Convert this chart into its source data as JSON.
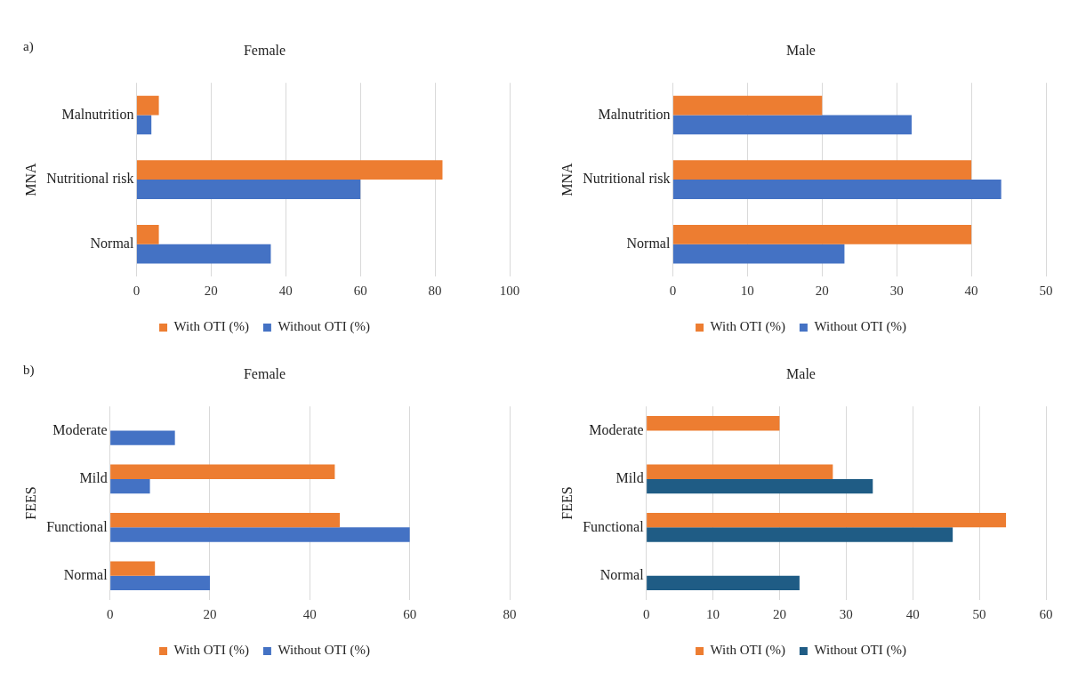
{
  "chart_data": [
    {
      "type": "bar",
      "orientation": "horizontal",
      "title": "Female",
      "ylabel": "MNA",
      "annotations": [
        "a)"
      ],
      "categories": [
        "Malnutrition",
        "Nutritional risk",
        "Normal"
      ],
      "series": [
        {
          "name": "With OTI (%)",
          "color": "#ed7d31",
          "values": [
            6,
            82,
            6
          ]
        },
        {
          "name": "Without OTI (%)",
          "color": "#4472c4",
          "values": [
            4,
            60,
            36
          ]
        }
      ],
      "xlim": [
        0,
        100
      ],
      "xticks": [
        0,
        20,
        40,
        60,
        80,
        100
      ],
      "grid": "x",
      "legend": "bottom"
    },
    {
      "type": "bar",
      "orientation": "horizontal",
      "title": "Male",
      "ylabel": "MNA",
      "categories": [
        "Malnutrition",
        "Nutritional risk",
        "Normal"
      ],
      "series": [
        {
          "name": "With OTI (%)",
          "color": "#ed7d31",
          "values": [
            20,
            40,
            40
          ]
        },
        {
          "name": "Without OTI (%)",
          "color": "#4472c4",
          "values": [
            32,
            44,
            23
          ]
        }
      ],
      "xlim": [
        0,
        50
      ],
      "xticks": [
        0,
        10,
        20,
        30,
        40,
        50
      ],
      "grid": "x",
      "legend": "bottom"
    },
    {
      "type": "bar",
      "orientation": "horizontal",
      "title": "Female",
      "ylabel": "FEES",
      "annotations": [
        "b)"
      ],
      "categories": [
        "Moderate",
        "Mild",
        "Functional",
        "Normal"
      ],
      "series": [
        {
          "name": "With OTI (%)",
          "color": "#ed7d31",
          "values": [
            0,
            45,
            46,
            9
          ]
        },
        {
          "name": "Without OTI (%)",
          "color": "#4472c4",
          "values": [
            13,
            8,
            60,
            20
          ]
        }
      ],
      "xlim": [
        0,
        80
      ],
      "xticks": [
        0,
        20,
        40,
        60,
        80
      ],
      "grid": "x",
      "legend": "bottom"
    },
    {
      "type": "bar",
      "orientation": "horizontal",
      "title": "Male",
      "ylabel": "FEES",
      "categories": [
        "Moderate",
        "Mild",
        "Functional",
        "Normal"
      ],
      "series": [
        {
          "name": "With OTI (%)",
          "color": "#ed7d31",
          "values": [
            20,
            28,
            54,
            0
          ]
        },
        {
          "name": "Without OTI (%)",
          "color": "#1f5c85",
          "values": [
            0,
            34,
            46,
            23
          ]
        }
      ],
      "xlim": [
        0,
        60
      ],
      "xticks": [
        0,
        10,
        20,
        30,
        40,
        50,
        60
      ],
      "grid": "x",
      "legend": "bottom"
    }
  ]
}
